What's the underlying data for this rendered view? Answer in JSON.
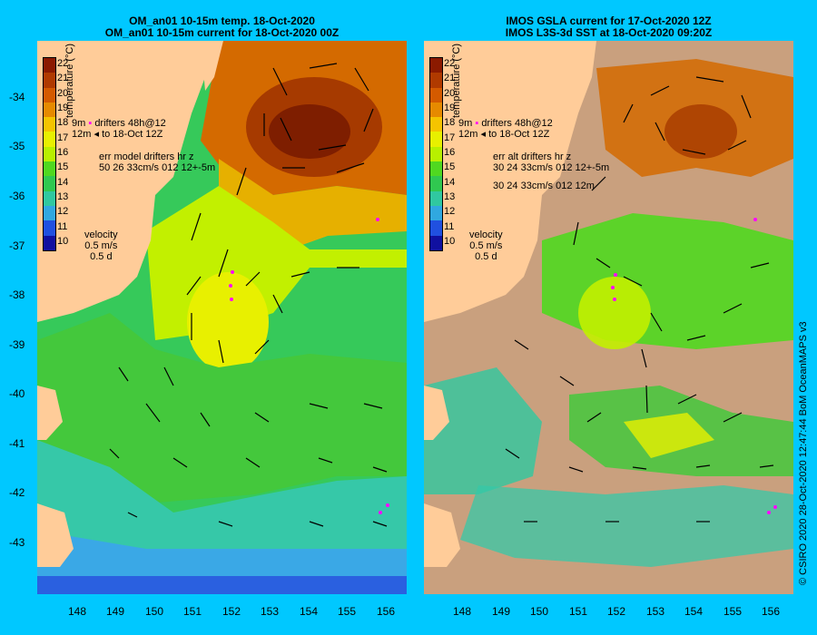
{
  "left_panel": {
    "title_line1": "OM_an01 10-15m temp. 18-Oct-2020",
    "title_line2": "OM_an01 10-15m current for 18-Oct-2020 00Z",
    "legend_drifters": "drifters 48h@12",
    "legend_to": "to 18-Oct 12Z",
    "legend_gm": "9m",
    "legend_12m": "12m",
    "err_line1": "err model drifters hr z",
    "err_line2": "50 26 33cm/s 012 12+-5m",
    "err_line3": ""
  },
  "right_panel": {
    "title_line1": "IMOS GSLA current for 17-Oct-2020 12Z",
    "title_line2": "IMOS L3S-3d SST at 18-Oct-2020 09:20Z",
    "legend_drifters": "drifters 48h@12",
    "legend_to": "to 18-Oct 12Z",
    "legend_gm": "9m",
    "legend_12m": "12m",
    "err_line1": "err alt drifters hr z",
    "err_line2": "30 24 33cm/s 012 12+-5m",
    "err_line3": "30 24 33cm/s 012 12m"
  },
  "colorbar": {
    "title": "temperature (°C)",
    "ticks": [
      "22",
      "21",
      "20",
      "19",
      "18",
      "17",
      "16",
      "15",
      "14",
      "13",
      "12",
      "11",
      "10"
    ],
    "colors": [
      "#8b1a00",
      "#b03a00",
      "#d45a00",
      "#e68a00",
      "#f5c400",
      "#e8f000",
      "#b8f000",
      "#50d820",
      "#30c850",
      "#30c8a0",
      "#30a8e0",
      "#2050e0",
      "#1010a0"
    ]
  },
  "velocity": {
    "label": "velocity",
    "scale": "0.5 m/s",
    "time": "0.5 d"
  },
  "axes": {
    "lat_ticks": [
      "-34",
      "-35",
      "-36",
      "-37",
      "-38",
      "-39",
      "-40",
      "-41",
      "-42",
      "-43"
    ],
    "lon_ticks": [
      "148",
      "149",
      "150",
      "151",
      "152",
      "153",
      "154",
      "155",
      "156"
    ]
  },
  "copyright": "© CSIRO 2020  28-Oct-2020 12:47:44 BoM OceanMAPS v3",
  "colors": {
    "background": "#00c8ff",
    "land": "#ffcc99",
    "arrow": "#000000",
    "drifter": "#ff00ff"
  }
}
